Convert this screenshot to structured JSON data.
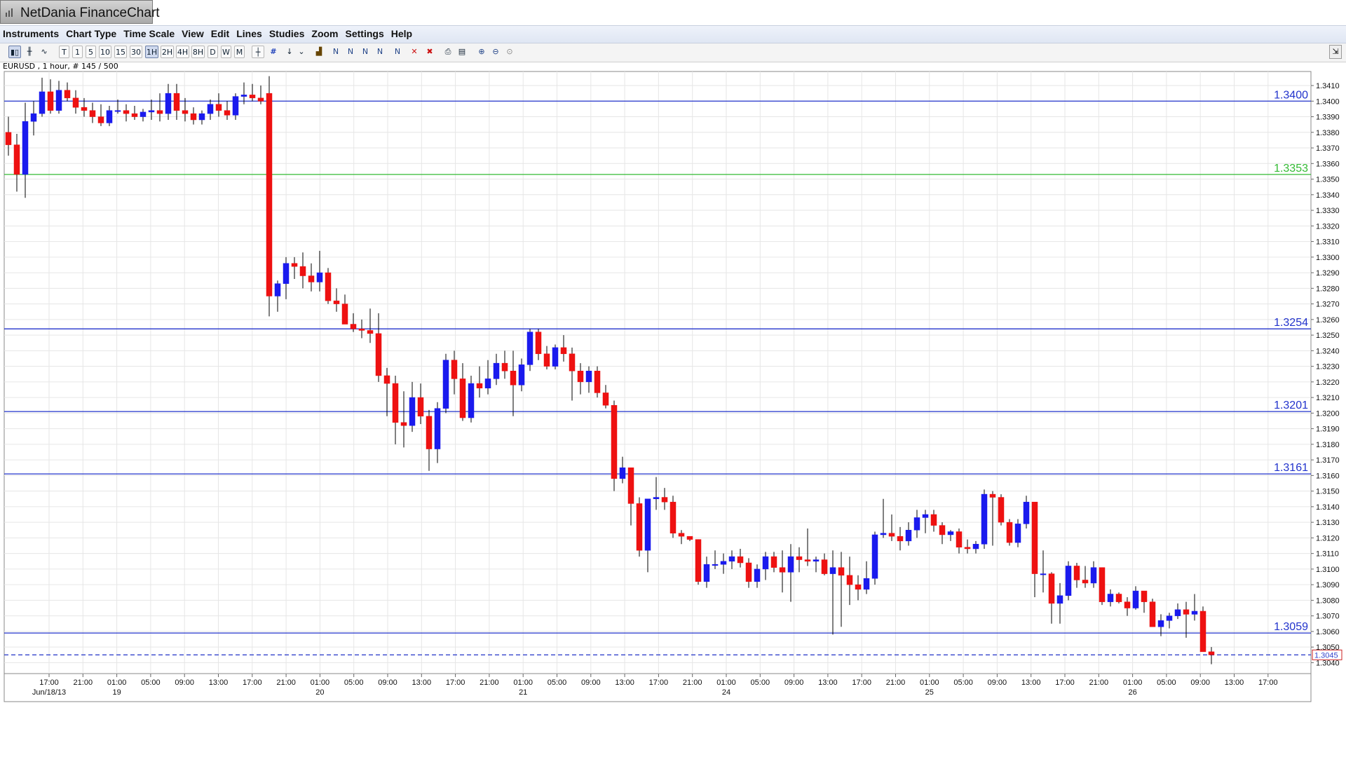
{
  "window": {
    "title": "NetDania FinanceChart"
  },
  "menu": [
    "Instruments",
    "Chart Type",
    "Time Scale",
    "View",
    "Edit",
    "Lines",
    "Studies",
    "Zoom",
    "Settings",
    "Help"
  ],
  "toolbar": {
    "timeframes": [
      "T",
      "1",
      "5",
      "10",
      "15",
      "30",
      "1H",
      "2H",
      "4H",
      "8H",
      "D",
      "W",
      "M"
    ],
    "active_timeframe": "1H"
  },
  "chart_data": {
    "type": "candlestick",
    "symbol_info": "EURUSD , 1 hour, # 145 / 500",
    "ylim": [
      1.3033,
      1.3419
    ],
    "y_ticks": [
      "1.3410",
      "1.3400",
      "1.3390",
      "1.3380",
      "1.3370",
      "1.3360",
      "1.3350",
      "1.3340",
      "1.3330",
      "1.3320",
      "1.3310",
      "1.3300",
      "1.3290",
      "1.3280",
      "1.3270",
      "1.3260",
      "1.3250",
      "1.3240",
      "1.3230",
      "1.3220",
      "1.3210",
      "1.3200",
      "1.3190",
      "1.3180",
      "1.3170",
      "1.3160",
      "1.3150",
      "1.3140",
      "1.3130",
      "1.3120",
      "1.3110",
      "1.3100",
      "1.3090",
      "1.3080",
      "1.3070",
      "1.3060",
      "1.3050",
      "1.3040"
    ],
    "time_labels": [
      "17:00",
      "21:00",
      "01:00",
      "05:00",
      "09:00",
      "13:00",
      "17:00",
      "21:00",
      "01:00",
      "05:00",
      "09:00",
      "13:00",
      "17:00",
      "21:00",
      "01:00",
      "05:00",
      "09:00",
      "13:00",
      "17:00",
      "21:00",
      "01:00",
      "05:00",
      "09:00",
      "13:00",
      "17:00",
      "21:00",
      "01:00",
      "05:00",
      "09:00",
      "13:00",
      "17:00",
      "21:00",
      "01:00",
      "05:00",
      "09:00",
      "13:00",
      "17:00"
    ],
    "date_labels": [
      {
        "text": "Jun/18/13",
        "at": 0
      },
      {
        "text": "19",
        "at": 2
      },
      {
        "text": "20",
        "at": 8
      },
      {
        "text": "21",
        "at": 14
      },
      {
        "text": "24",
        "at": 20
      },
      {
        "text": "25",
        "at": 26
      },
      {
        "text": "26",
        "at": 32
      }
    ],
    "horizontal_lines": [
      {
        "value": 1.34,
        "label": "1.3400",
        "color": "#2233cc"
      },
      {
        "value": 1.3353,
        "label": "1.3353",
        "color": "#33bb33"
      },
      {
        "value": 1.3254,
        "label": "1.3254",
        "color": "#2233cc"
      },
      {
        "value": 1.3201,
        "label": "1.3201",
        "color": "#2233cc"
      },
      {
        "value": 1.3161,
        "label": "1.3161",
        "color": "#2233cc"
      },
      {
        "value": 1.3059,
        "label": "1.3059",
        "color": "#2233cc"
      }
    ],
    "last_price": {
      "value": 1.3045,
      "label": "1.3045",
      "color": "#3344cc"
    },
    "up_color": "#1a1aee",
    "down_color": "#ee1111",
    "candles": [
      [
        1.338,
        1.339,
        1.3365,
        1.3372
      ],
      [
        1.3372,
        1.3379,
        1.3342,
        1.3353
      ],
      [
        1.3353,
        1.3399,
        1.3338,
        1.3387
      ],
      [
        1.3387,
        1.34,
        1.3378,
        1.3392
      ],
      [
        1.3392,
        1.3415,
        1.339,
        1.3406
      ],
      [
        1.3406,
        1.3414,
        1.3392,
        1.3394
      ],
      [
        1.3394,
        1.3413,
        1.3392,
        1.3407
      ],
      [
        1.3407,
        1.3412,
        1.34,
        1.3402
      ],
      [
        1.3402,
        1.3407,
        1.3392,
        1.3396
      ],
      [
        1.3396,
        1.3402,
        1.339,
        1.3394
      ],
      [
        1.3394,
        1.3399,
        1.3386,
        1.339
      ],
      [
        1.339,
        1.3398,
        1.3384,
        1.3386
      ],
      [
        1.3386,
        1.3397,
        1.3384,
        1.3394
      ],
      [
        1.3394,
        1.3401,
        1.3392,
        1.3394
      ],
      [
        1.3394,
        1.3398,
        1.3387,
        1.3392
      ],
      [
        1.3392,
        1.3397,
        1.3388,
        1.339
      ],
      [
        1.339,
        1.3395,
        1.3387,
        1.3393
      ],
      [
        1.3393,
        1.3401,
        1.3388,
        1.3394
      ],
      [
        1.3394,
        1.3405,
        1.3387,
        1.3392
      ],
      [
        1.3392,
        1.3411,
        1.3388,
        1.3405
      ],
      [
        1.3405,
        1.3411,
        1.3388,
        1.3394
      ],
      [
        1.3394,
        1.3402,
        1.3387,
        1.3392
      ],
      [
        1.3392,
        1.3396,
        1.3385,
        1.3388
      ],
      [
        1.3388,
        1.3394,
        1.3385,
        1.3392
      ],
      [
        1.3392,
        1.3401,
        1.3388,
        1.3398
      ],
      [
        1.3398,
        1.3405,
        1.339,
        1.3394
      ],
      [
        1.3394,
        1.34,
        1.3388,
        1.3391
      ],
      [
        1.3391,
        1.3405,
        1.3388,
        1.3403
      ],
      [
        1.3403,
        1.3412,
        1.3398,
        1.3404
      ],
      [
        1.3404,
        1.3411,
        1.34,
        1.3402
      ],
      [
        1.3402,
        1.341,
        1.3398,
        1.34
      ],
      [
        1.3405,
        1.3416,
        1.3262,
        1.3275
      ],
      [
        1.3275,
        1.3285,
        1.3265,
        1.3283
      ],
      [
        1.3283,
        1.33,
        1.3273,
        1.3296
      ],
      [
        1.3296,
        1.33,
        1.3286,
        1.3294
      ],
      [
        1.3294,
        1.3303,
        1.328,
        1.3288
      ],
      [
        1.3288,
        1.3296,
        1.3278,
        1.3284
      ],
      [
        1.3284,
        1.3304,
        1.3278,
        1.329
      ],
      [
        1.329,
        1.3293,
        1.327,
        1.3272
      ],
      [
        1.3272,
        1.328,
        1.3265,
        1.327
      ],
      [
        1.327,
        1.3276,
        1.3257,
        1.3257
      ],
      [
        1.3257,
        1.3264,
        1.3252,
        1.3254
      ],
      [
        1.3254,
        1.326,
        1.3248,
        1.3253
      ],
      [
        1.3253,
        1.3267,
        1.3245,
        1.3251
      ],
      [
        1.3251,
        1.3264,
        1.322,
        1.3224
      ],
      [
        1.3224,
        1.3229,
        1.3198,
        1.3219
      ],
      [
        1.3219,
        1.3224,
        1.318,
        1.3194
      ],
      [
        1.3194,
        1.3214,
        1.3178,
        1.3192
      ],
      [
        1.3192,
        1.322,
        1.3188,
        1.321
      ],
      [
        1.321,
        1.3219,
        1.3193,
        1.3198
      ],
      [
        1.3198,
        1.3202,
        1.3163,
        1.3177
      ],
      [
        1.3177,
        1.3207,
        1.3168,
        1.3203
      ],
      [
        1.3203,
        1.3238,
        1.32,
        1.3234
      ],
      [
        1.3234,
        1.324,
        1.3212,
        1.3222
      ],
      [
        1.3222,
        1.3232,
        1.3195,
        1.3197
      ],
      [
        1.3197,
        1.3224,
        1.3194,
        1.3219
      ],
      [
        1.3219,
        1.323,
        1.321,
        1.3216
      ],
      [
        1.3216,
        1.3234,
        1.3212,
        1.3222
      ],
      [
        1.3222,
        1.3238,
        1.3218,
        1.3232
      ],
      [
        1.3232,
        1.324,
        1.3222,
        1.3227
      ],
      [
        1.3227,
        1.324,
        1.3198,
        1.3218
      ],
      [
        1.3218,
        1.3235,
        1.3214,
        1.3231
      ],
      [
        1.3231,
        1.3254,
        1.3227,
        1.3252
      ],
      [
        1.3252,
        1.3254,
        1.3234,
        1.3238
      ],
      [
        1.3238,
        1.3243,
        1.3228,
        1.323
      ],
      [
        1.323,
        1.3244,
        1.3228,
        1.3242
      ],
      [
        1.3242,
        1.325,
        1.3233,
        1.3238
      ],
      [
        1.3238,
        1.3242,
        1.3208,
        1.3227
      ],
      [
        1.3227,
        1.3232,
        1.3212,
        1.322
      ],
      [
        1.322,
        1.323,
        1.3213,
        1.3227
      ],
      [
        1.3227,
        1.323,
        1.321,
        1.3213
      ],
      [
        1.3213,
        1.3218,
        1.3203,
        1.3205
      ],
      [
        1.3205,
        1.3208,
        1.315,
        1.3158
      ],
      [
        1.3158,
        1.3172,
        1.3155,
        1.3165
      ],
      [
        1.3165,
        1.3165,
        1.3128,
        1.3142
      ],
      [
        1.3142,
        1.3146,
        1.3108,
        1.3112
      ],
      [
        1.3112,
        1.3145,
        1.3098,
        1.3145
      ],
      [
        1.3145,
        1.3159,
        1.3138,
        1.3146
      ],
      [
        1.3146,
        1.3152,
        1.3138,
        1.3143
      ],
      [
        1.3143,
        1.3147,
        1.312,
        1.3123
      ],
      [
        1.3123,
        1.3125,
        1.3116,
        1.3121
      ],
      [
        1.3121,
        1.3121,
        1.3118,
        1.3119
      ],
      [
        1.3119,
        1.3119,
        1.309,
        1.3092
      ],
      [
        1.3092,
        1.3108,
        1.3088,
        1.3103
      ],
      [
        1.3103,
        1.3112,
        1.31,
        1.3103
      ],
      [
        1.3103,
        1.311,
        1.3097,
        1.3105
      ],
      [
        1.3105,
        1.3112,
        1.31,
        1.3108
      ],
      [
        1.3108,
        1.3113,
        1.3101,
        1.3104
      ],
      [
        1.3104,
        1.3107,
        1.3088,
        1.3092
      ],
      [
        1.3092,
        1.3103,
        1.3088,
        1.31
      ],
      [
        1.31,
        1.3111,
        1.3093,
        1.3108
      ],
      [
        1.3108,
        1.3111,
        1.3098,
        1.3101
      ],
      [
        1.3101,
        1.3112,
        1.3085,
        1.3098
      ],
      [
        1.3098,
        1.3116,
        1.3079,
        1.3108
      ],
      [
        1.3108,
        1.3114,
        1.3098,
        1.3106
      ],
      [
        1.3106,
        1.3126,
        1.3102,
        1.3105
      ],
      [
        1.3105,
        1.3108,
        1.3098,
        1.3106
      ],
      [
        1.3106,
        1.311,
        1.3096,
        1.3097
      ],
      [
        1.3097,
        1.3112,
        1.3058,
        1.3101
      ],
      [
        1.3101,
        1.3111,
        1.3063,
        1.3096
      ],
      [
        1.3096,
        1.3108,
        1.3077,
        1.309
      ],
      [
        1.309,
        1.3096,
        1.308,
        1.3087
      ],
      [
        1.3087,
        1.3105,
        1.3084,
        1.3094
      ],
      [
        1.3094,
        1.3124,
        1.309,
        1.3122
      ],
      [
        1.3122,
        1.3145,
        1.312,
        1.3123
      ],
      [
        1.3123,
        1.3135,
        1.3118,
        1.3121
      ],
      [
        1.3121,
        1.3127,
        1.3112,
        1.3118
      ],
      [
        1.3118,
        1.313,
        1.3115,
        1.3125
      ],
      [
        1.3125,
        1.3138,
        1.312,
        1.3133
      ],
      [
        1.3133,
        1.3138,
        1.3123,
        1.3135
      ],
      [
        1.3135,
        1.3138,
        1.3124,
        1.3128
      ],
      [
        1.3128,
        1.313,
        1.3116,
        1.3122
      ],
      [
        1.3122,
        1.3125,
        1.3118,
        1.3124
      ],
      [
        1.3124,
        1.3126,
        1.311,
        1.3114
      ],
      [
        1.3114,
        1.3119,
        1.311,
        1.3113
      ],
      [
        1.3113,
        1.3118,
        1.311,
        1.3116
      ],
      [
        1.3116,
        1.3151,
        1.3113,
        1.3148
      ],
      [
        1.3148,
        1.315,
        1.3115,
        1.3146
      ],
      [
        1.3146,
        1.3148,
        1.3128,
        1.313
      ],
      [
        1.313,
        1.3132,
        1.3115,
        1.3117
      ],
      [
        1.3117,
        1.3132,
        1.3114,
        1.3129
      ],
      [
        1.3129,
        1.3147,
        1.3126,
        1.3143
      ],
      [
        1.3143,
        1.3143,
        1.3082,
        1.3097
      ],
      [
        1.3097,
        1.3112,
        1.3085,
        1.3097
      ],
      [
        1.3097,
        1.3098,
        1.3065,
        1.3078
      ],
      [
        1.3078,
        1.3091,
        1.3065,
        1.3083
      ],
      [
        1.3083,
        1.3105,
        1.308,
        1.3102
      ],
      [
        1.3102,
        1.3104,
        1.3088,
        1.3093
      ],
      [
        1.3093,
        1.3102,
        1.3088,
        1.3091
      ],
      [
        1.3091,
        1.3105,
        1.3088,
        1.3101
      ],
      [
        1.3101,
        1.3101,
        1.3077,
        1.3079
      ],
      [
        1.3079,
        1.3087,
        1.3076,
        1.3084
      ],
      [
        1.3084,
        1.3085,
        1.3078,
        1.3079
      ],
      [
        1.3079,
        1.3082,
        1.307,
        1.3075
      ],
      [
        1.3075,
        1.3089,
        1.3074,
        1.3086
      ],
      [
        1.3086,
        1.3086,
        1.3072,
        1.3079
      ],
      [
        1.3079,
        1.3081,
        1.3063,
        1.3063
      ],
      [
        1.3063,
        1.3071,
        1.3057,
        1.3067
      ],
      [
        1.3067,
        1.3072,
        1.3062,
        1.307
      ],
      [
        1.307,
        1.3078,
        1.3068,
        1.3074
      ],
      [
        1.3074,
        1.3079,
        1.3056,
        1.3071
      ],
      [
        1.3071,
        1.3084,
        1.3067,
        1.3073
      ],
      [
        1.3073,
        1.3076,
        1.3047,
        1.3047
      ],
      [
        1.3047,
        1.305,
        1.3039,
        1.3045
      ]
    ]
  }
}
